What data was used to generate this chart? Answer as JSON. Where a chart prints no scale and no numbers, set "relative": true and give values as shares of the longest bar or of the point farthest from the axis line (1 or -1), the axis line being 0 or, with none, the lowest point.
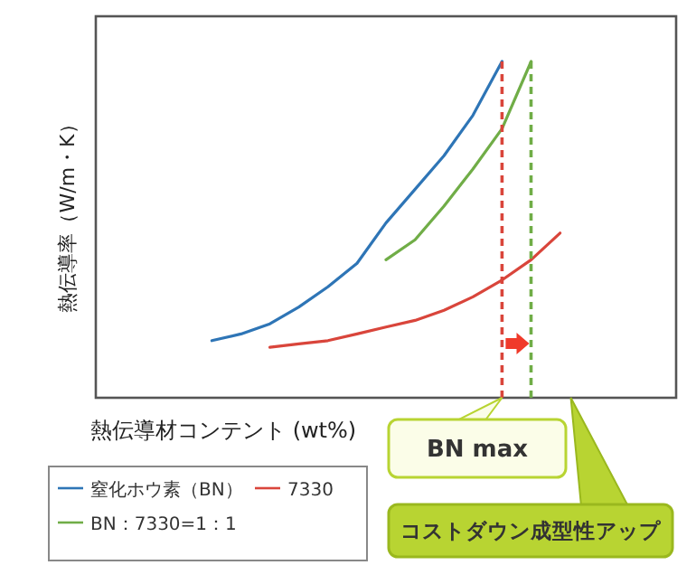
{
  "chart_data": {
    "type": "line",
    "relative": true,
    "ylabel": "熱伝導率（W/m・K）",
    "xlabel": "熱伝導材コンテント (wt%)",
    "legend": "bottom left",
    "grid": false,
    "categories": [
      null,
      null,
      null,
      null,
      null,
      null,
      null,
      null,
      null,
      null,
      null,
      null,
      null,
      null,
      null,
      null,
      null,
      null,
      null,
      null,
      null
    ],
    "series": [
      {
        "name": "窒化ホウ素（BN）",
        "color": "#2e75b6",
        "values": [
          null,
          null,
          null,
          null,
          0.17,
          0.19,
          0.22,
          0.27,
          0.33,
          0.4,
          0.52,
          0.62,
          0.72,
          0.84,
          1,
          null,
          null,
          null,
          null,
          null,
          null
        ]
      },
      {
        "name": "7330",
        "color": "#d9453b",
        "values": [
          null,
          null,
          null,
          null,
          null,
          null,
          0.15,
          0.16,
          0.17,
          0.19,
          0.21,
          0.23,
          0.26,
          0.3,
          0.35,
          0.41,
          0.49,
          null,
          null,
          null,
          null
        ]
      },
      {
        "name": "BN：7330=1：1",
        "color": "#70ad47",
        "values": [
          null,
          null,
          null,
          null,
          null,
          null,
          null,
          null,
          null,
          null,
          0.41,
          0.47,
          0.57,
          0.68,
          0.8,
          1,
          null,
          null,
          null,
          null,
          null
        ]
      }
    ],
    "annotations": [
      "BN max",
      "コストダウン成型性アップ"
    ]
  }
}
